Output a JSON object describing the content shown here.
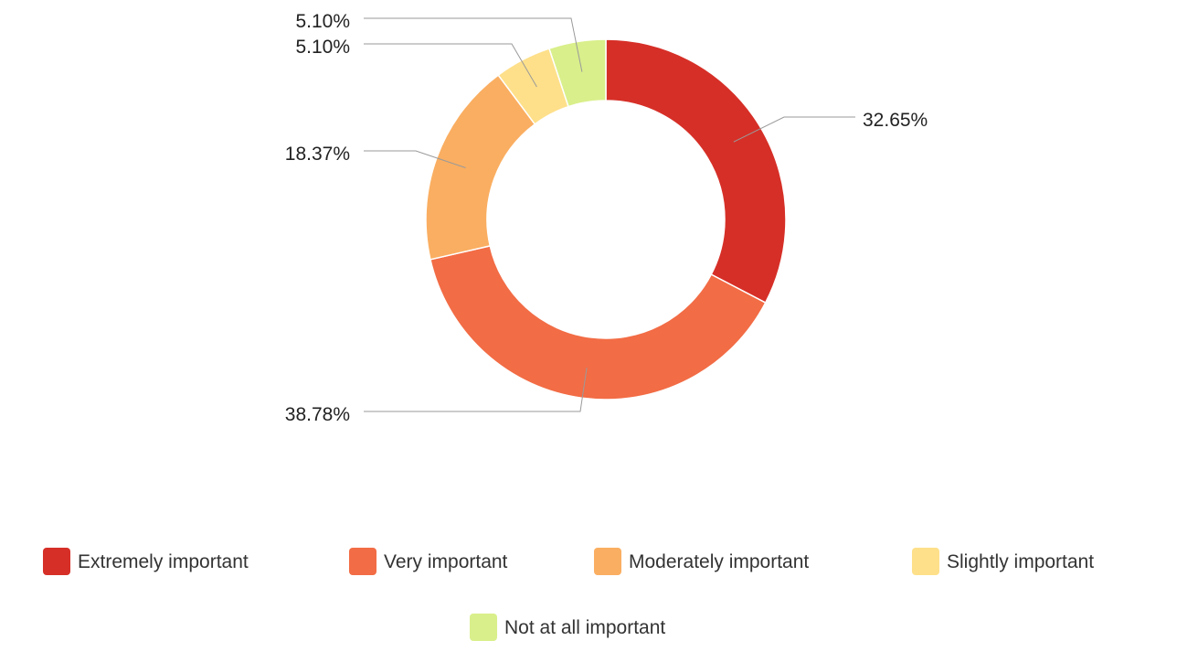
{
  "chart_data": {
    "type": "pie",
    "donut": true,
    "categories": [
      "Extremely important",
      "Very important",
      "Moderately important",
      "Slightly important",
      "Not at all important"
    ],
    "values": [
      32.65,
      38.78,
      18.37,
      5.1,
      5.1
    ],
    "labels": [
      "32.65%",
      "38.78%",
      "18.37%",
      "5.10%",
      "5.10%"
    ],
    "colors": [
      "#d62f27",
      "#f26c45",
      "#faae61",
      "#fee08a",
      "#d9ef8b"
    ],
    "legend_position": "bottom",
    "title": ""
  }
}
